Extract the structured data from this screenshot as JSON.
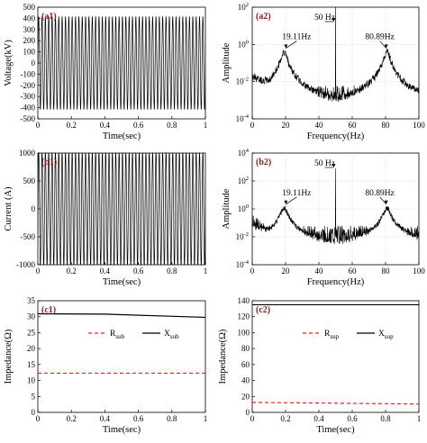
{
  "chart_data": [
    {
      "panel": "(a1)",
      "type": "line",
      "xlabel": "Time(sec)",
      "ylabel": "Voltage(kV)",
      "xlim": [
        0,
        1
      ],
      "ylim": [
        -500,
        500
      ],
      "xticks": [
        "0",
        "0.2",
        "0.4",
        "0.6",
        "0.8",
        "1"
      ],
      "yticks": [
        "-500",
        "-400",
        "-300",
        "-200",
        "-100",
        "0",
        "100",
        "200",
        "300",
        "400",
        "500"
      ],
      "signal": {
        "amplitude": 420,
        "frequency_hz": 50,
        "color": "#000000"
      }
    },
    {
      "panel": "(a2)",
      "type": "line",
      "yscale": "log",
      "xlabel": "Frequency(Hz)",
      "ylabel": "Amplitude",
      "xlim": [
        0,
        100
      ],
      "ylim": [
        0.0001,
        100
      ],
      "xticks": [
        "0",
        "20",
        "40",
        "60",
        "80",
        "100"
      ],
      "yticks": [
        {
          "base": "10",
          "exp": "-4"
        },
        {
          "base": "10",
          "exp": "-2"
        },
        {
          "base": "10",
          "exp": "0"
        },
        {
          "base": "10",
          "exp": "2"
        }
      ],
      "peaks": [
        {
          "x": 19.11,
          "y": 0.4
        },
        {
          "x": 50,
          "y": 250
        },
        {
          "x": 80.89,
          "y": 0.4
        }
      ],
      "noise_floor": 0.001,
      "annotations": [
        {
          "text": "19.11Hz",
          "x": 19.11
        },
        {
          "text": "50 Hz",
          "x": 50
        },
        {
          "text": "80.89Hz",
          "x": 80.89
        }
      ]
    },
    {
      "panel": "(b1)",
      "type": "line",
      "xlabel": "Time(sec)",
      "ylabel": "Current (A)",
      "xlim": [
        0,
        1
      ],
      "ylim": [
        -1000,
        1000
      ],
      "xticks": [
        "0",
        "0.2",
        "0.4",
        "0.6",
        "0.8",
        "1"
      ],
      "yticks": [
        "-1000",
        "-500",
        "0",
        "500",
        "1000"
      ],
      "signal": {
        "amplitude": 1050,
        "frequency_hz": 50,
        "color": "#000000"
      }
    },
    {
      "panel": "(b2)",
      "type": "line",
      "yscale": "log",
      "xlabel": "Frequency(Hz)",
      "ylabel": "Amplitude",
      "xlim": [
        0,
        100
      ],
      "ylim": [
        0.0001,
        10000
      ],
      "xticks": [
        "0",
        "20",
        "40",
        "60",
        "80",
        "100"
      ],
      "yticks": [
        {
          "base": "10",
          "exp": "-4"
        },
        {
          "base": "10",
          "exp": "-2"
        },
        {
          "base": "10",
          "exp": "0"
        },
        {
          "base": "10",
          "exp": "2"
        },
        {
          "base": "10",
          "exp": "4"
        }
      ],
      "peaks": [
        {
          "x": 19.11,
          "y": 1.2
        },
        {
          "x": 50,
          "y": 800
        },
        {
          "x": 80.89,
          "y": 1.2
        }
      ],
      "noise_floor": 0.01,
      "annotations": [
        {
          "text": "19.11Hz",
          "x": 19.11
        },
        {
          "text": "50 Hz",
          "x": 50
        },
        {
          "text": "80.89Hz",
          "x": 80.89
        }
      ]
    },
    {
      "panel": "(c1)",
      "type": "line",
      "xlabel": "Time(sec)",
      "ylabel": "Impedance(Ω)",
      "xlim": [
        0,
        1
      ],
      "ylim": [
        0,
        35
      ],
      "xticks": [
        "0",
        "0.2",
        "0.4",
        "0.6",
        "0.8",
        "1"
      ],
      "yticks": [
        "0",
        "5",
        "10",
        "15",
        "20",
        "25",
        "30",
        "35"
      ],
      "series": [
        {
          "name": "R",
          "sub": "sub",
          "x": [
            0,
            1
          ],
          "y": [
            12.3,
            12.3
          ],
          "color": "#e8221b",
          "dash": true
        },
        {
          "name": "X",
          "sub": "sub",
          "x": [
            0,
            0.4,
            1
          ],
          "y": [
            30.9,
            30.8,
            29.8
          ],
          "color": "#000000",
          "dash": false
        }
      ]
    },
    {
      "panel": "(c2)",
      "type": "line",
      "xlabel": "Time(sec)",
      "ylabel": "Impedance(Ω)",
      "xlim": [
        0,
        1
      ],
      "ylim": [
        0,
        140
      ],
      "xticks": [
        "0",
        "0.2",
        "0.4",
        "0.6",
        "0.8",
        "1"
      ],
      "yticks": [
        "0",
        "20",
        "40",
        "60",
        "80",
        "100",
        "120",
        "140"
      ],
      "series": [
        {
          "name": "R",
          "sub": "sup",
          "x": [
            0,
            1
          ],
          "y": [
            12.5,
            10.5
          ],
          "color": "#e8221b",
          "dash": true
        },
        {
          "name": "X",
          "sub": "sup",
          "x": [
            0,
            1
          ],
          "y": [
            135,
            135
          ],
          "color": "#000000",
          "dash": false
        }
      ]
    }
  ]
}
